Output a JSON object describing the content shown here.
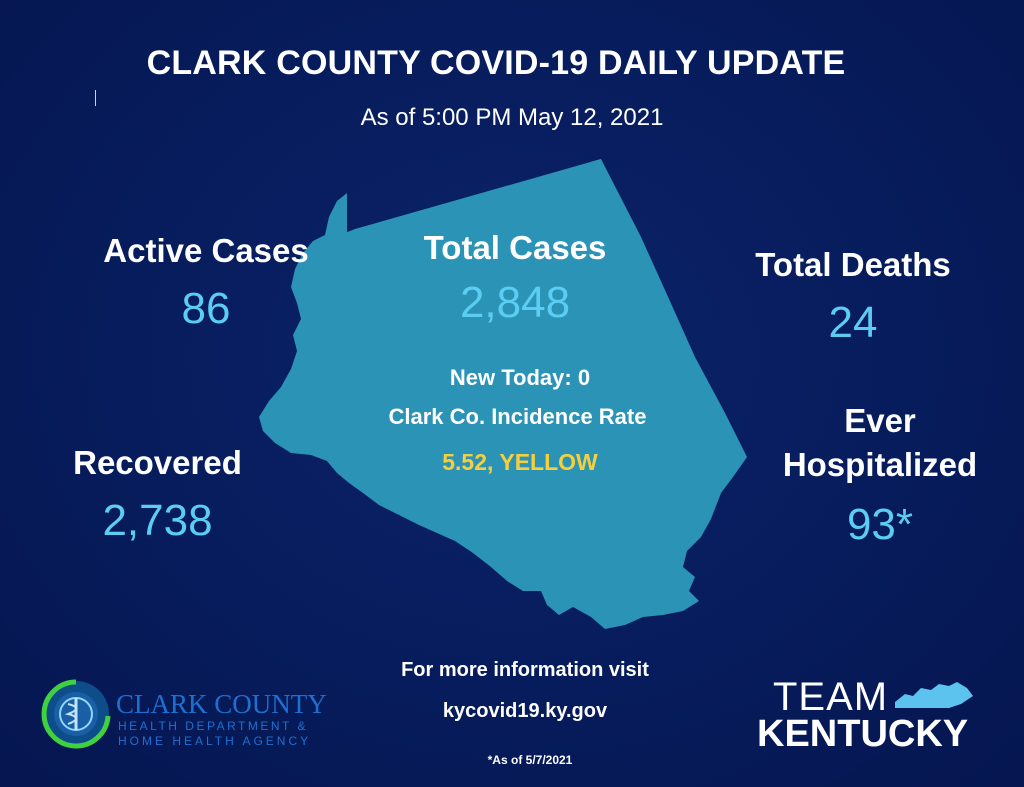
{
  "header": {
    "title": "CLARK COUNTY COVID-19 DAILY UPDATE",
    "subtitle": "As of 5:00 PM May 12, 2021"
  },
  "stats": {
    "active_cases": {
      "label": "Active Cases",
      "value": "86"
    },
    "total_cases": {
      "label": "Total Cases",
      "value": "2,848"
    },
    "total_deaths": {
      "label": "Total Deaths",
      "value": "24"
    },
    "recovered": {
      "label": "Recovered",
      "value": "2,738"
    },
    "ever_hospitalized": {
      "label_line1": "Ever",
      "label_line2": "Hospitalized",
      "value": "93*"
    }
  },
  "map_center": {
    "new_today": "New Today: 0",
    "incidence_label": "Clark Co. Incidence Rate",
    "incidence_value": "5.52, YELLOW"
  },
  "footer": {
    "info_line1": "For more information visit",
    "info_line2": "kycovid19.ky.gov",
    "footnote": "*As of 5/7/2021"
  },
  "logos": {
    "health_dept_name": "CLARK COUNTY",
    "health_dept_sub1": "HEALTH DEPARTMENT &",
    "health_dept_sub2": "HOME HEALTH AGENCY",
    "team_word": "TEAM",
    "kentucky_word": "KENTUCKY"
  },
  "colors": {
    "background": "#071c5c",
    "map_fill": "#2b93b6",
    "value_blue": "#5ccdf2",
    "status_yellow": "#f4d03f",
    "white": "#ffffff"
  }
}
